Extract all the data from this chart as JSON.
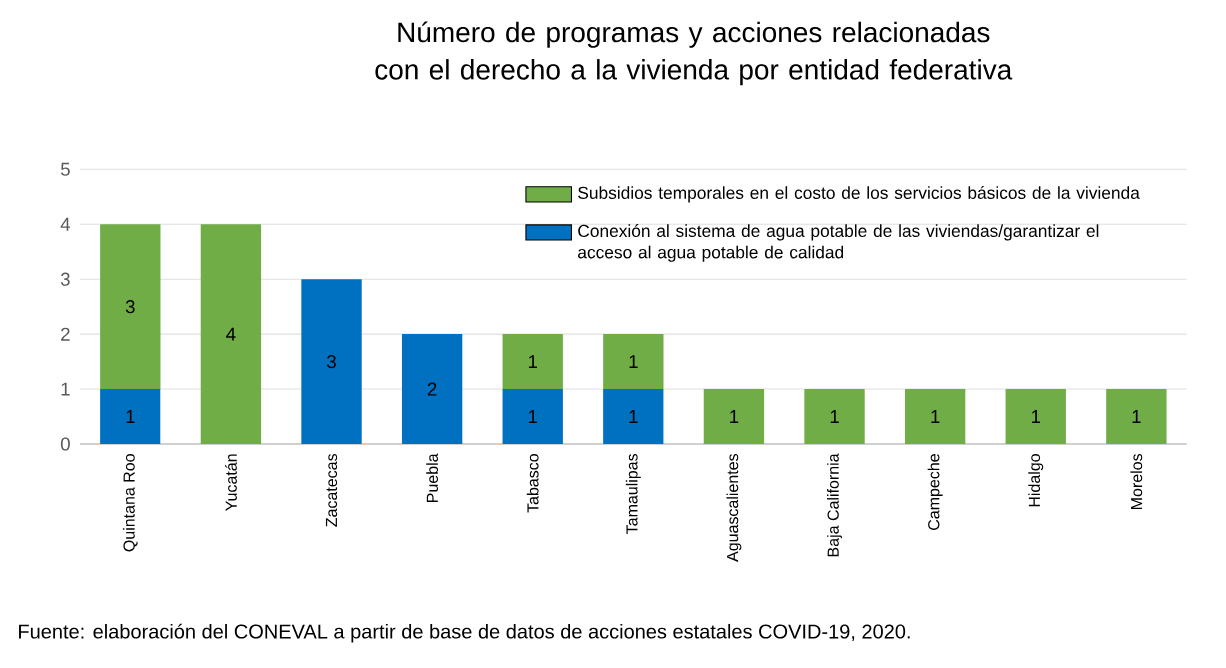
{
  "chart_data": {
    "type": "bar",
    "stacked": true,
    "title": "Número de programas y acciones relacionadas con el derecho a la vivienda por entidad federativa",
    "categories": [
      "Quintana Roo",
      "Yucatán",
      "Zacatecas",
      "Puebla",
      "Tabasco",
      "Tamaulipas",
      "Aguascalientes",
      "Baja California",
      "Campeche",
      "Hidalgo",
      "Morelos"
    ],
    "series": [
      {
        "name": "Conexión al sistema de agua potable de las viviendas/garantizar el acceso al agua potable de calidad",
        "color": "#0070c0",
        "values": [
          1,
          null,
          3,
          2,
          1,
          1,
          null,
          null,
          null,
          null,
          null
        ]
      },
      {
        "name": "Subsidios temporales en el costo de los servicios básicos de la vivienda",
        "color": "#70ad47",
        "values": [
          3,
          4,
          null,
          null,
          1,
          1,
          1,
          1,
          1,
          1,
          1
        ]
      }
    ],
    "data_labels": true,
    "ylim": [
      0,
      5
    ],
    "yticks": [
      0,
      1,
      2,
      3,
      4,
      5
    ],
    "grid": "y",
    "legend": "top right",
    "annotations": [
      "Fuente: elaboración del CONEVAL a partir de base de datos de acciones estatales COVID-19, 2020."
    ]
  }
}
